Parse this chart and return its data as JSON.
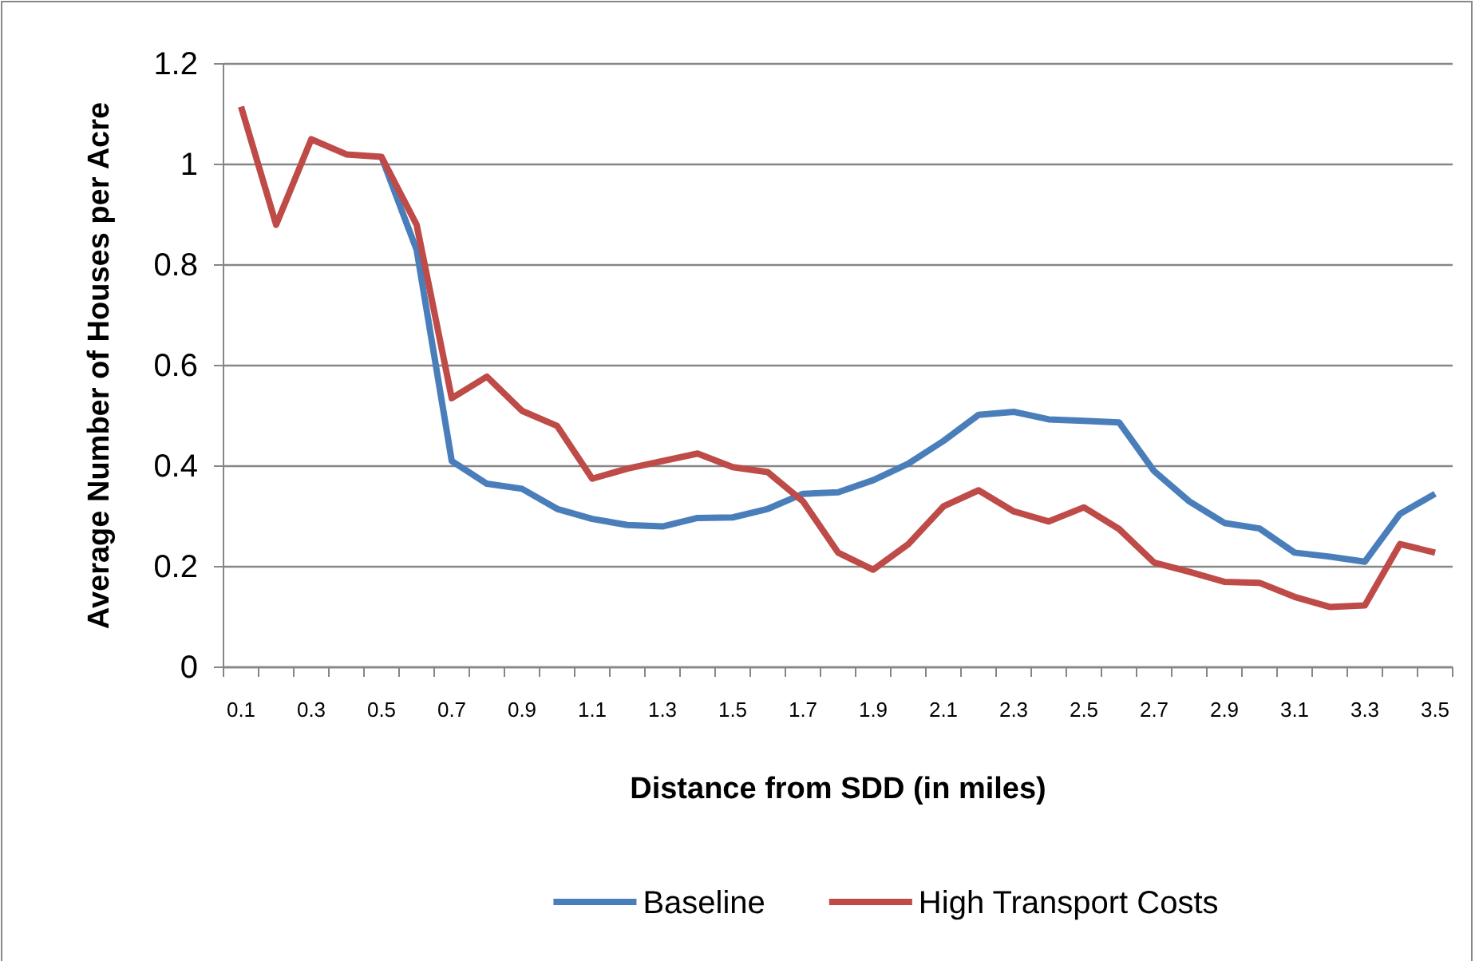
{
  "chart_data": {
    "type": "line",
    "xlabel": "Distance from SDD (in miles)",
    "ylabel": "Average Number of Houses per Acre",
    "categories": [
      "0.1",
      null,
      "0.3",
      null,
      "0.5",
      null,
      "0.7",
      null,
      "0.9",
      null,
      "1.1",
      null,
      "1.3",
      null,
      "1.5",
      null,
      "1.7",
      null,
      "1.9",
      null,
      "2.1",
      null,
      "2.3",
      null,
      "2.5",
      null,
      "2.7",
      null,
      "2.9",
      null,
      "3.1",
      null,
      "3.3",
      null,
      "3.5"
    ],
    "series": [
      {
        "name": "Baseline",
        "color": "#4a7ebb",
        "values": [
          null,
          null,
          null,
          null,
          1.015,
          0.83,
          0.41,
          0.365,
          0.355,
          0.315,
          0.295,
          0.283,
          0.28,
          0.297,
          0.298,
          0.315,
          0.345,
          0.348,
          0.372,
          0.405,
          0.45,
          0.502,
          0.508,
          0.493,
          0.49,
          0.487,
          0.39,
          0.33,
          0.287,
          0.276,
          0.228,
          0.22,
          0.21,
          0.305,
          0.345
        ]
      },
      {
        "name": "High Transport Costs",
        "color": "#be4b48",
        "values": [
          1.115,
          0.88,
          1.05,
          1.02,
          1.015,
          0.88,
          0.535,
          0.578,
          0.51,
          0.48,
          0.375,
          0.395,
          0.41,
          0.425,
          0.398,
          0.388,
          0.33,
          0.228,
          0.194,
          0.245,
          0.32,
          0.352,
          0.31,
          0.29,
          0.318,
          0.275,
          0.208,
          0.19,
          0.17,
          0.168,
          0.14,
          0.12,
          0.123,
          0.245,
          0.228
        ]
      }
    ],
    "ylim": [
      0,
      1.2
    ],
    "yticks": [
      0,
      0.2,
      0.4,
      0.6,
      0.8,
      1,
      1.2
    ],
    "grid": "y",
    "legend": "bottom",
    "marker": "none",
    "line_style": "solid"
  }
}
